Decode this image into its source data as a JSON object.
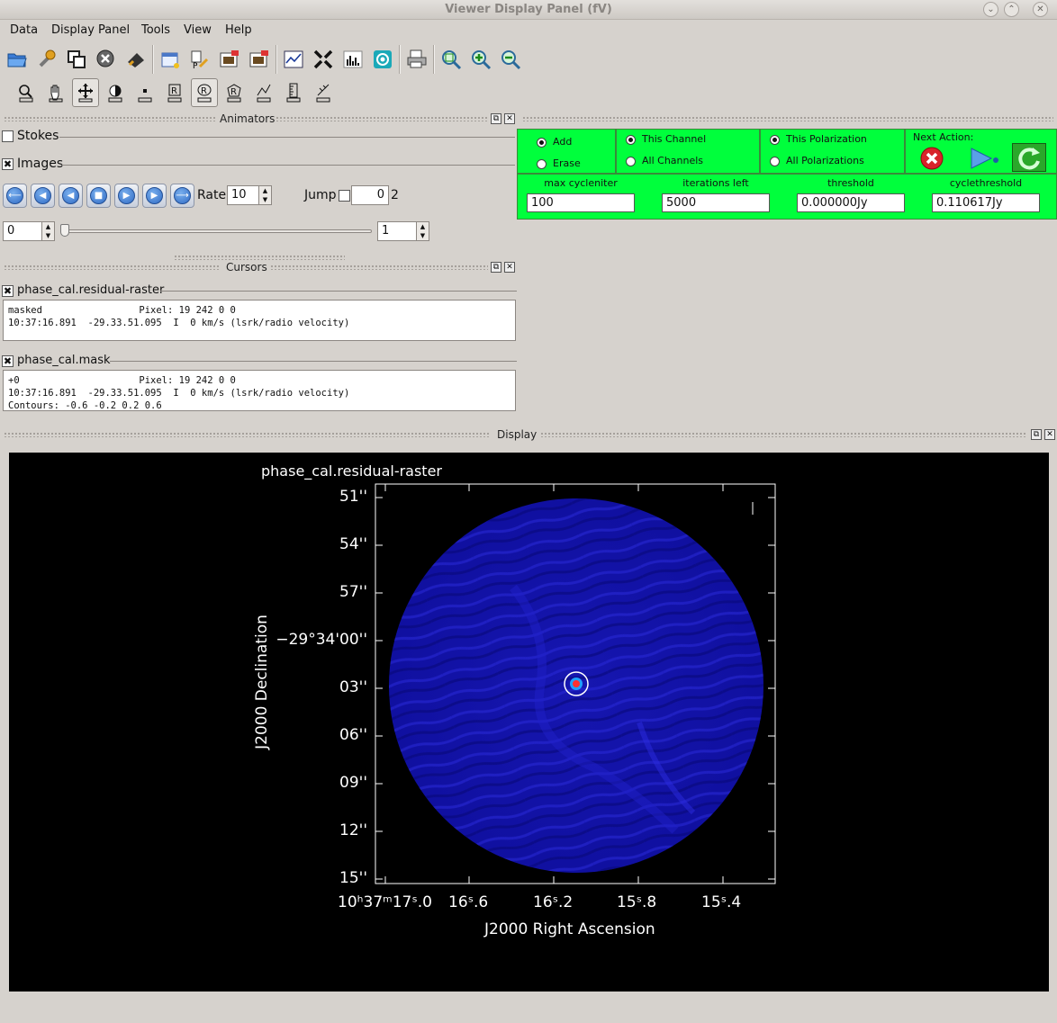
{
  "window": {
    "title": "Viewer Display Panel (fV)"
  },
  "menu": [
    {
      "label": "Data"
    },
    {
      "label": "Display Panel"
    },
    {
      "label": "Tools"
    },
    {
      "label": "View"
    },
    {
      "label": "Help"
    }
  ],
  "animators": {
    "title": "Animators",
    "stokes_label": "Stokes",
    "images_label": "Images",
    "rate_label": "Rate:",
    "rate_value": "10",
    "jump_label": "Jump",
    "jump_value": "0",
    "jump_total": "2",
    "start_value": "0",
    "end_value": "1"
  },
  "cursors": {
    "title": "Cursors",
    "panels": [
      {
        "name": "phase_cal.residual-raster",
        "lines": [
          "masked                 Pixel: 19 242 0 0",
          "10:37:16.891  -29.33.51.095  I  0 km/s (lsrk/radio velocity)"
        ]
      },
      {
        "name": "phase_cal.mask",
        "lines": [
          "+0                     Pixel: 19 242 0 0",
          "10:37:16.891  -29.33.51.095  I  0 km/s (lsrk/radio velocity)",
          "Contours: -0.6 -0.2 0.2 0.6"
        ]
      }
    ]
  },
  "clean": {
    "add_label": "Add",
    "erase_label": "Erase",
    "this_channel": "This Channel",
    "all_channels": "All Channels",
    "this_polarization": "This Polarization",
    "all_polarizations": "All Polarizations",
    "next_action": "Next Action:",
    "fields": [
      {
        "label": "max cycleniter",
        "value": "100"
      },
      {
        "label": "iterations left",
        "value": "5000"
      },
      {
        "label": "threshold",
        "value": "0.000000Jy"
      },
      {
        "label": "cyclethreshold",
        "value": "0.110617Jy"
      }
    ]
  },
  "display": {
    "title": "Display",
    "image_title": "phase_cal.residual-raster",
    "ylabel": "J2000 Declination",
    "xlabel": "J2000 Right Ascension",
    "dec_ticks": [
      "51''",
      "54''",
      "57''",
      "−29°34'00''",
      "03''",
      "06''",
      "09''",
      "12''",
      "15''"
    ],
    "ra_ticks": [
      "10h37m17s.0",
      "16s.6",
      "16s.2",
      "15s.8",
      "15s.4"
    ],
    "ra_ticks_display": [
      "10ʰ37ᵐ17ˢ.0",
      "16ˢ.6",
      "16ˢ.2",
      "15ˢ.8",
      "15ˢ.4"
    ]
  },
  "colors": {
    "clean_panel": "#00ff3c",
    "image_blue": "#1a1ab8",
    "background": "#d6d2cd"
  }
}
